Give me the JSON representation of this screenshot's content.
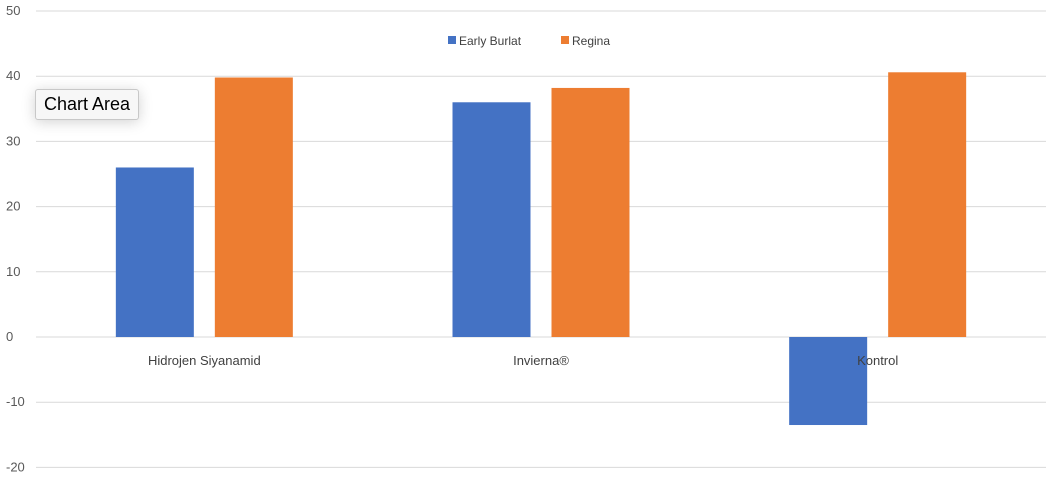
{
  "chart_data": {
    "type": "bar",
    "categories": [
      "Hidrojen Siyanamid",
      "Invierna®",
      "Kontrol"
    ],
    "series": [
      {
        "name": "Early Burlat",
        "values": [
          26,
          36,
          -13.5
        ],
        "color": "#4472C4"
      },
      {
        "name": "Regina",
        "values": [
          39.8,
          38.2,
          40.6
        ],
        "color": "#ED7D31"
      }
    ],
    "ylim": [
      -20,
      50
    ],
    "yticks": [
      50,
      40,
      30,
      20,
      10,
      0,
      -10,
      -20
    ],
    "grid": true,
    "legend": "top-center"
  },
  "tooltip": {
    "label": "Chart Area"
  },
  "colors": {
    "grid": "#d9d9d9"
  }
}
